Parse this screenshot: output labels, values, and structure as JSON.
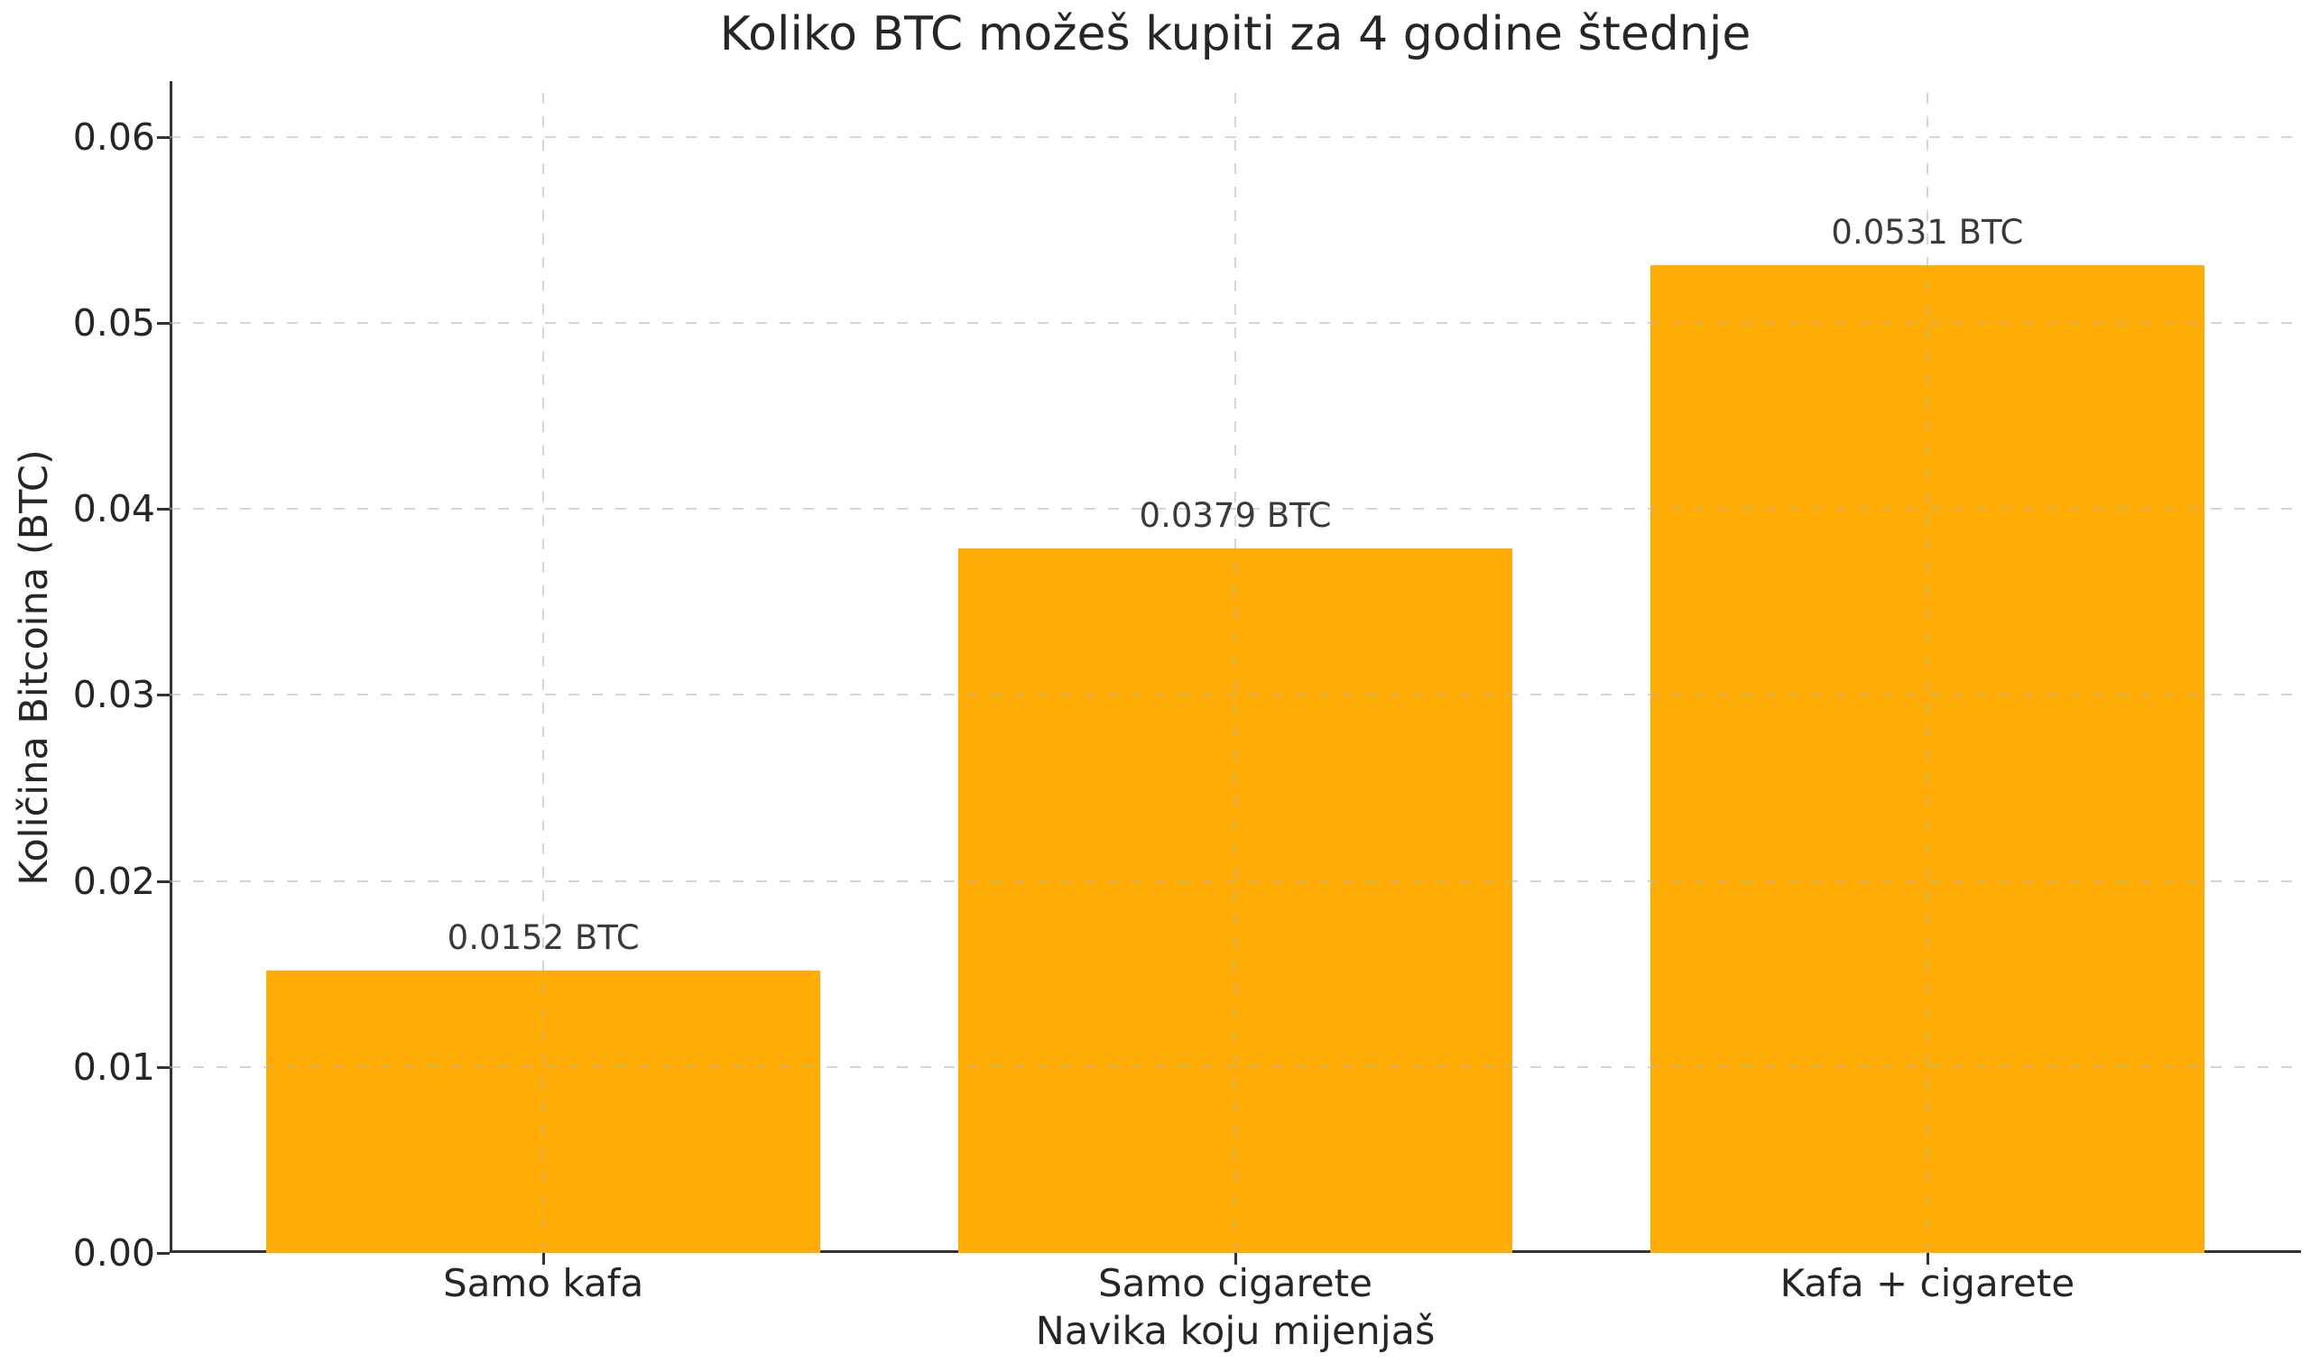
{
  "chart_data": {
    "type": "bar",
    "title": "Koliko BTC možeš kupiti za 4 godine štednje",
    "xlabel": "Navika koju mijenjaš",
    "ylabel": "Količina Bitcoina (BTC)",
    "categories": [
      "Samo kafa",
      "Samo cigarete",
      "Kafa + cigarete"
    ],
    "values": [
      0.0152,
      0.0379,
      0.0531
    ],
    "bar_labels": [
      "0.0152 BTC",
      "0.0379 BTC",
      "0.0531 BTC"
    ],
    "yticks": [
      0.0,
      0.01,
      0.02,
      0.03,
      0.04,
      0.05,
      0.06
    ],
    "ytick_labels": [
      "0.00",
      "0.01",
      "0.02",
      "0.03",
      "0.04",
      "0.05",
      "0.06"
    ],
    "ylim": [
      0,
      0.063
    ],
    "grid": true,
    "grid_style": "dashed",
    "legend": "none",
    "colors": {
      "bar": "#ffac04",
      "grid": "#b2b2b2",
      "axis": "#333333",
      "text": "#262626"
    }
  }
}
